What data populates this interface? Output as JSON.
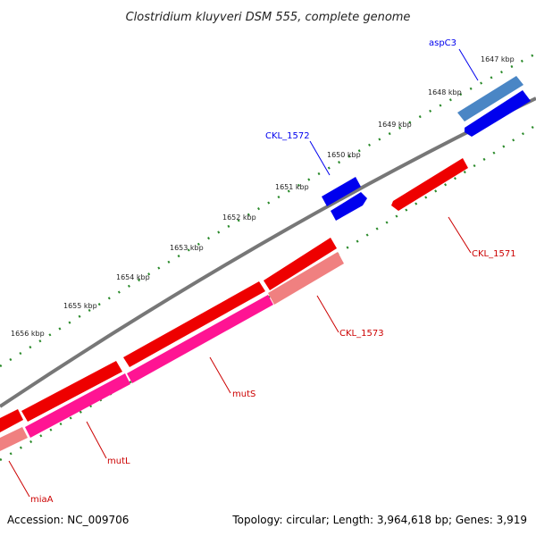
{
  "title": "Clostridium kluyveri DSM 555, complete genome",
  "footer": {
    "accession": "Accession: NC_009706",
    "summary": "Topology: circular; Length: 3,964,618 bp; Genes: 3,919"
  },
  "ticks": [
    "1647 kbp",
    "1648 kbp",
    "1649 kbp",
    "1650 kbp",
    "1651 kbp",
    "1652 kbp",
    "1653 kbp",
    "1654 kbp",
    "1655 kbp",
    "1656 kbp"
  ],
  "genes": [
    {
      "id": "aspC3",
      "label": "aspC3",
      "color": "#0000ee"
    },
    {
      "id": "CKL_1572",
      "label": "CKL_1572",
      "color": "#0000ee"
    },
    {
      "id": "CKL_1571",
      "label": "CKL_1571",
      "color": "#cc0000"
    },
    {
      "id": "CKL_1573",
      "label": "CKL_1573",
      "color": "#cc0000"
    },
    {
      "id": "mutS",
      "label": "mutS",
      "color": "#cc0000"
    },
    {
      "id": "mutL",
      "label": "mutL",
      "color": "#cc0000"
    },
    {
      "id": "miaA",
      "label": "miaA",
      "color": "#cc0000"
    }
  ],
  "colors": {
    "backbone": "#777777",
    "ticks": "#2a8a2a",
    "cds_forward": "#ff0000",
    "cds_reverse": "#ff0000",
    "feature_blue": "#0000ff",
    "feature_steel": "#4a86c5",
    "feature_pink": "#ff1493",
    "feature_light": "#f08080"
  }
}
